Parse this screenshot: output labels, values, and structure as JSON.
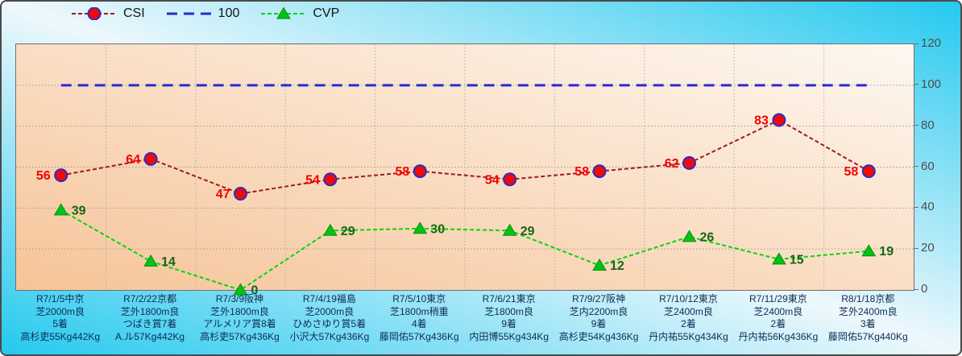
{
  "watermark": "©Caniの競馬データ研究室",
  "chart_data": {
    "type": "line",
    "title": "",
    "legend_position": "top",
    "grid": true,
    "y_axis": {
      "min": 0,
      "max": 120,
      "ticks": [
        0,
        20,
        40,
        60,
        80,
        100,
        120
      ]
    },
    "categories": [
      [
        "R7/1/5中京",
        "芝2000m良",
        "5着",
        "高杉吏55Kg442Kg"
      ],
      [
        "R7/2/22京都",
        "芝外1800m良",
        "つばき賞7着",
        "A.ル57Kg442Kg"
      ],
      [
        "R7/3/9阪神",
        "芝外1800m良",
        "アルメリア賞8着",
        "高杉吏57Kg436Kg"
      ],
      [
        "R7/4/19福島",
        "芝2000m良",
        "ひめさゆり賞5着",
        "小沢大57Kg436Kg"
      ],
      [
        "R7/5/10東京",
        "芝1800m稍重",
        "4着",
        "藤岡佑57Kg436Kg"
      ],
      [
        "R7/6/21東京",
        "芝1800m良",
        "9着",
        "内田博55Kg434Kg"
      ],
      [
        "R7/9/27阪神",
        "芝内2200m良",
        "9着",
        "高杉吏54Kg436Kg"
      ],
      [
        "R7/10/12東京",
        "芝2400m良",
        "2着",
        "丹内祐55Kg434Kg"
      ],
      [
        "R7/11/29東京",
        "芝2400m良",
        "2着",
        "丹内祐56Kg436Kg"
      ],
      [
        "R8/1/18京都",
        "芝外2400m良",
        "3着",
        "藤岡佑57Kg440Kg"
      ]
    ],
    "series": [
      {
        "name": "CSI",
        "values": [
          56,
          64,
          47,
          54,
          58,
          54,
          58,
          62,
          83,
          58
        ],
        "line_color": "#9b1c1c",
        "line_width": 2,
        "dash": "5,3",
        "marker": "circle",
        "marker_fill": "#ee0a0a",
        "marker_edge": "#2d2dc4",
        "show_labels": true,
        "label_color": "#f50000",
        "label_side": "left"
      },
      {
        "name": "100",
        "values": [
          100,
          100,
          100,
          100,
          100,
          100,
          100,
          100,
          100,
          100
        ],
        "line_color": "#2a2ad2",
        "line_width": 3,
        "dash": "13,8",
        "marker": "none",
        "show_labels": false
      },
      {
        "name": "CVP",
        "values": [
          39,
          14,
          0,
          29,
          30,
          29,
          12,
          26,
          15,
          19
        ],
        "line_color": "#00d60c",
        "line_width": 2,
        "dash": "5,3",
        "marker": "triangle",
        "marker_fill": "#00c414",
        "marker_edge": "#0b8a0b",
        "show_labels": true,
        "label_color": "#156615",
        "label_side": "right"
      }
    ],
    "style": {
      "bg_corner": "#25c9ef",
      "bg_mid": "#eef8fc",
      "plot_bg_light": "#fdf8f1",
      "plot_bg_dark": "#f6c498",
      "grid_color": "#9b9b9b",
      "vgrid_color": "#aeaeae",
      "watermark_color": "#9a9ae2",
      "x_label_color": "#0d2c52",
      "y_label_color": "#4d4d4d"
    }
  }
}
